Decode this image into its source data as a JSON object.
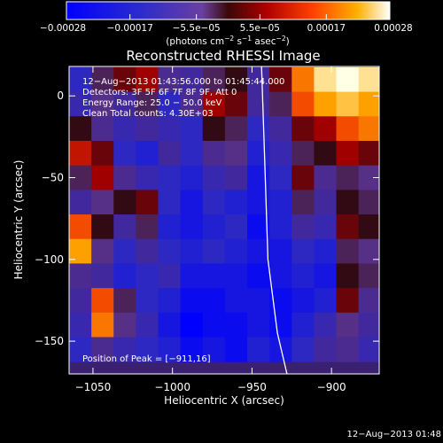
{
  "chart_data": {
    "type": "heatmap",
    "title": "Reconstructed RHESSI Image",
    "xlabel": "Heliocentric X (arcsec)",
    "ylabel": "Heliocentric Y (arcsec)",
    "xlim": [
      -1065,
      -870
    ],
    "ylim": [
      -170,
      18
    ],
    "xticks": [
      -1050,
      -1000,
      -950,
      -900
    ],
    "xtick_labels": [
      "−1050",
      "−1000",
      "−950",
      "−900"
    ],
    "yticks": [
      0,
      -50,
      -100,
      -150
    ],
    "ytick_labels": [
      "0",
      "−50",
      "−100",
      "−150"
    ],
    "colorbar": {
      "min": -0.00028,
      "max": 0.00028,
      "ticks": [
        -0.00028,
        -0.00017,
        -5.5e-05,
        5.5e-05,
        0.00017,
        0.00028
      ],
      "tick_labels": [
        "−0.00028",
        "−0.00017",
        "−5.5e−05",
        "5.5e−05",
        "0.00017",
        "0.00028"
      ],
      "label_main": "(photons cm",
      "label_exp1": "−2",
      "label_mid1": " s",
      "label_exp2": "−1",
      "label_mid2": " asec",
      "label_exp3": "−2",
      "label_end": ")"
    },
    "annotations": [
      "12−Aug−2013 01:43:56.000 to 01:45:44.000",
      "Detectors: 3F 5F 6F 7F 8F 9F, Att 0",
      "Energy Range: 25.0 − 50.0 keV",
      "Clean     Total counts: 4.30E+03"
    ],
    "peak_label": "Position of Peak = [−911,16]",
    "peak": [
      -911,
      16
    ],
    "limb": [
      [
        -944,
        18
      ],
      [
        -942,
        -40
      ],
      [
        -940,
        -100
      ],
      [
        -934,
        -145
      ],
      [
        -928,
        -170
      ]
    ],
    "intensity_grid": {
      "rows": 12,
      "cols": 14,
      "x_centers": [
        -1058,
        -1044,
        -1030,
        -1016,
        -1002,
        -988,
        -974,
        -960,
        -946,
        -932,
        -918,
        -904,
        -890,
        -876
      ],
      "y_centers": [
        10,
        -5,
        -20,
        -35,
        -50,
        -65,
        -80,
        -95,
        -110,
        -125,
        -140,
        -155
      ],
      "values": [
        [
          0.2,
          0.45,
          0.55,
          0.6,
          0.35,
          0.3,
          0.45,
          0.5,
          0.3,
          0.55,
          0.8,
          0.95,
          1.0,
          0.95
        ],
        [
          0.25,
          0.4,
          0.3,
          0.45,
          0.2,
          0.35,
          0.6,
          0.55,
          0.3,
          0.45,
          0.75,
          0.85,
          0.9,
          0.85
        ],
        [
          0.5,
          0.35,
          0.25,
          0.3,
          0.25,
          0.2,
          0.5,
          0.45,
          0.2,
          0.3,
          0.55,
          0.6,
          0.75,
          0.8
        ],
        [
          0.65,
          0.55,
          0.2,
          0.15,
          0.3,
          0.2,
          0.35,
          0.4,
          0.15,
          0.25,
          0.45,
          0.5,
          0.6,
          0.55
        ],
        [
          0.45,
          0.6,
          0.35,
          0.25,
          0.2,
          0.15,
          0.25,
          0.3,
          0.1,
          0.2,
          0.55,
          0.35,
          0.45,
          0.4
        ],
        [
          0.3,
          0.4,
          0.5,
          0.55,
          0.2,
          0.1,
          0.2,
          0.15,
          0.1,
          0.15,
          0.45,
          0.3,
          0.5,
          0.45
        ],
        [
          0.75,
          0.5,
          0.3,
          0.45,
          0.15,
          0.1,
          0.15,
          0.2,
          0.05,
          0.15,
          0.3,
          0.25,
          0.55,
          0.5
        ],
        [
          0.85,
          0.4,
          0.2,
          0.3,
          0.2,
          0.15,
          0.2,
          0.15,
          0.1,
          0.1,
          0.2,
          0.15,
          0.45,
          0.4
        ],
        [
          0.35,
          0.3,
          0.15,
          0.2,
          0.25,
          0.1,
          0.1,
          0.1,
          0.05,
          0.1,
          0.15,
          0.1,
          0.5,
          0.45
        ],
        [
          0.3,
          0.75,
          0.45,
          0.2,
          0.15,
          0.05,
          0.05,
          0.1,
          0.1,
          0.05,
          0.1,
          0.15,
          0.55,
          0.35
        ],
        [
          0.25,
          0.8,
          0.4,
          0.25,
          0.1,
          0.0,
          0.05,
          0.05,
          0.1,
          0.05,
          0.15,
          0.25,
          0.4,
          0.3
        ],
        [
          0.2,
          0.35,
          0.25,
          0.2,
          0.15,
          0.05,
          0.1,
          0.05,
          0.15,
          0.1,
          0.2,
          0.3,
          0.35,
          0.25
        ]
      ]
    }
  },
  "timestamp": "12−Aug−2013 01:48"
}
